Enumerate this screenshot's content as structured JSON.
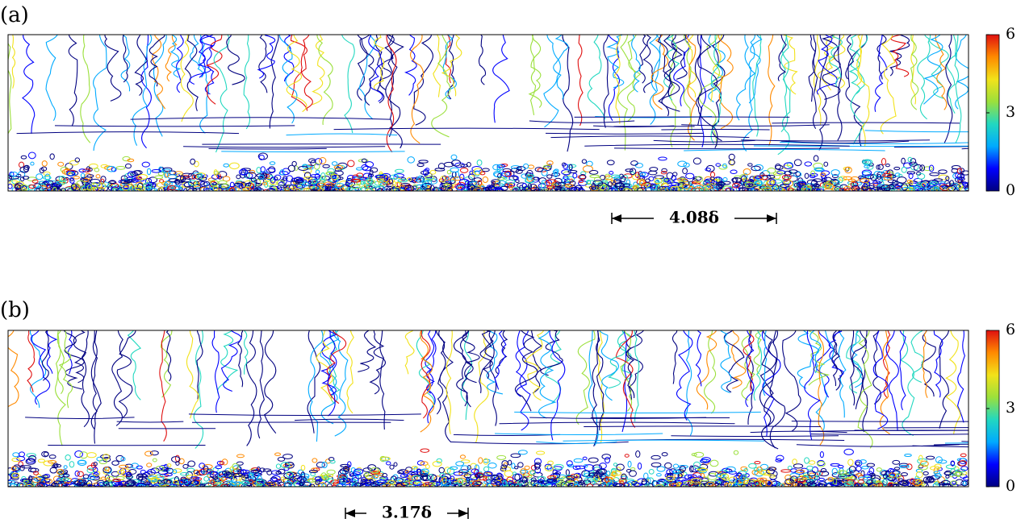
{
  "chart_data": [
    {
      "type": "contour",
      "panel_label": "(a)",
      "annotation": "4.08δ",
      "colorbar": {
        "lim": [
          0,
          6
        ],
        "ticks": [
          0,
          3,
          6
        ],
        "colormap": [
          "#000080",
          "#0000ff",
          "#00aaff",
          "#22d8c0",
          "#9be03c",
          "#f2e21a",
          "#ff8a00",
          "#e01010"
        ]
      }
    },
    {
      "type": "contour",
      "panel_label": "(b)",
      "annotation": "3.17δ",
      "colorbar": {
        "lim": [
          0,
          6
        ],
        "ticks": [
          0,
          3,
          6
        ],
        "colormap": [
          "#000080",
          "#0000ff",
          "#00aaff",
          "#22d8c0",
          "#9be03c",
          "#f2e21a",
          "#ff8a00",
          "#e01010"
        ]
      }
    }
  ]
}
